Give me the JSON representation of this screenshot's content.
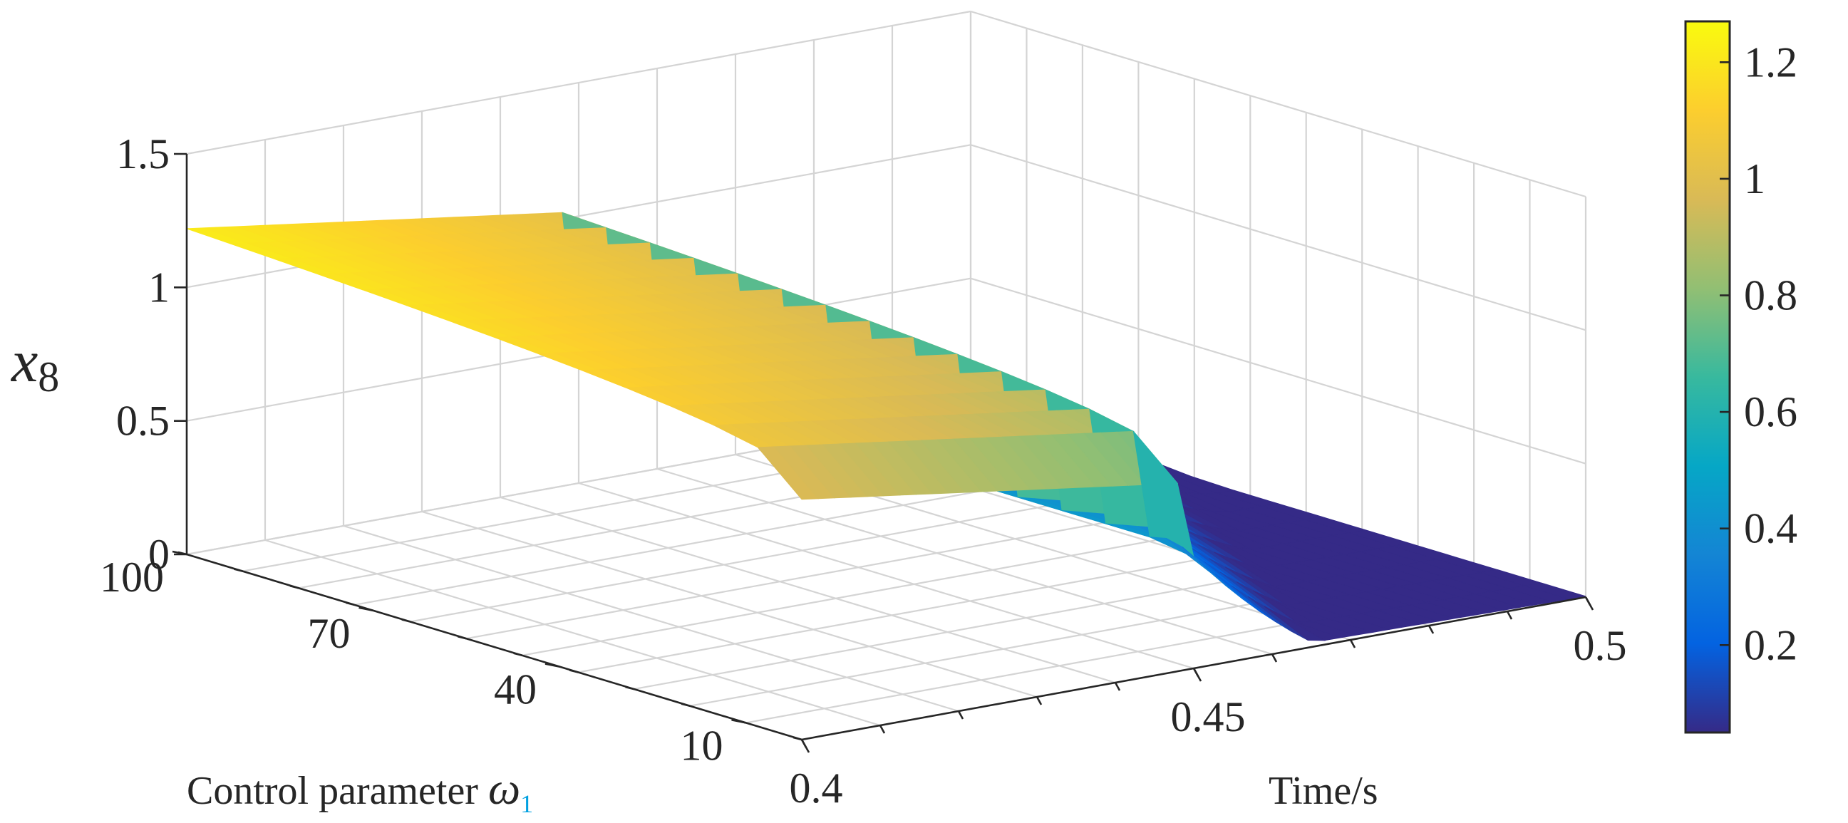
{
  "chart_data": {
    "type": "surface",
    "title": "",
    "xlabel": "Time/s",
    "ylabel": "Control parameter",
    "ylabel_symbol": "ω",
    "ylabel_subscript": "1",
    "zlabel": "x",
    "zlabel_subscript": "8",
    "x_ticks": [
      "0.4",
      "0.45",
      "0.5"
    ],
    "y_ticks": [
      "10",
      "40",
      "70",
      "100"
    ],
    "z_ticks": [
      "0",
      "0.5",
      "1",
      "1.5"
    ],
    "colorbar_ticks": [
      "0.2",
      "0.4",
      "0.6",
      "0.8",
      "1",
      "1.2"
    ],
    "xlim": [
      0.4,
      0.5
    ],
    "ylim": [
      1,
      100
    ],
    "zlim": [
      0,
      1.5
    ],
    "colorbar_range": [
      0.05,
      1.27
    ],
    "colormap": "parula",
    "grid": true,
    "x_switch": 0.449,
    "high_level": {
      "start": 1.22,
      "end": 1.02
    },
    "low_level": {
      "start": 0.45,
      "end": 0.06
    },
    "colormap_stops": [
      "#352a87",
      "#0363e1",
      "#1485d4",
      "#06a7c6",
      "#38b99e",
      "#92bf73",
      "#d9ba56",
      "#fcce2e",
      "#f9fb0e"
    ]
  }
}
